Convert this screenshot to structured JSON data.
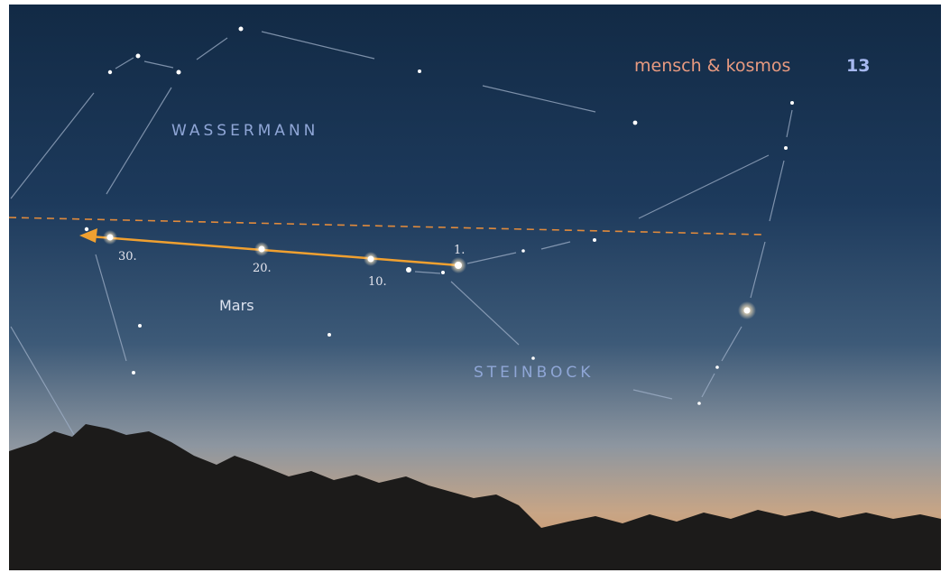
{
  "header": {
    "brand": "mensch & kosmos",
    "page_number": "13"
  },
  "constellations": [
    "WASSERMANN",
    "STEINBOCK"
  ],
  "planet": "Mars",
  "dates": [
    "1.",
    "10.",
    "20.",
    "30."
  ]
}
